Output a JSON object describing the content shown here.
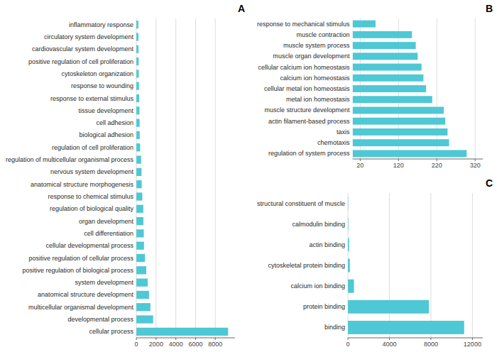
{
  "chart_data": [
    {
      "type": "bar",
      "title": "A",
      "orientation": "horizontal",
      "categories": [
        "inflammatory response",
        "circulatory system development",
        "cardiovascular system development",
        "positive regulation of cell proliferation",
        "cytoskeleton organization",
        "response to wounding",
        "response to external stimulus",
        "tissue development",
        "cell adhesion",
        "biological adhesion",
        "regulation of cell proliferation",
        "regulation of multicellular organismal process",
        "nervous system development",
        "anatomical structure morphogenesis",
        "response to chemical stimulus",
        "regulation of biological quality",
        "organ development",
        "cell differentiation",
        "cellular developmental process",
        "positive regulation of cellular process",
        "positive regulation of biological process",
        "system development",
        "anatomical structure development",
        "multicellular organismal development",
        "developmental process",
        "cellular process"
      ],
      "values": [
        200,
        210,
        215,
        230,
        240,
        260,
        280,
        310,
        330,
        340,
        380,
        480,
        520,
        540,
        600,
        700,
        710,
        750,
        770,
        870,
        1000,
        1150,
        1280,
        1420,
        1700,
        9300
      ],
      "color": "#4EC8D4",
      "xlim": [
        0,
        10000
      ],
      "xticks": [
        0,
        2000,
        4000,
        6000,
        8000
      ],
      "grid": true
    },
    {
      "type": "bar",
      "title": "B",
      "orientation": "horizontal",
      "categories": [
        "response to mechanical stimulus",
        "muscle contraction",
        "muscle system process",
        "muscle organ development",
        "cellular calcium ion homeostasis",
        "calcium ion homeostasis",
        "cellular metal ion homeostasis",
        "metal ion homeostasis",
        "muscle structure development",
        "actin filament-based process",
        "taxis",
        "chemotaxis",
        "regulation of system process"
      ],
      "values": [
        60,
        155,
        165,
        170,
        180,
        185,
        192,
        208,
        238,
        242,
        248,
        252,
        298
      ],
      "color": "#4EC8D4",
      "xlim": [
        0,
        340
      ],
      "xticks": [
        20,
        120,
        220,
        320
      ],
      "grid": true
    },
    {
      "type": "bar",
      "title": "C",
      "orientation": "horizontal",
      "categories": [
        "structural constituent of muscle",
        "calmodulin binding",
        "actin binding",
        "cytoskeletal protein binding",
        "calcium ion binding",
        "protein binding",
        "binding"
      ],
      "values": [
        25,
        35,
        110,
        180,
        580,
        7800,
        11200
      ],
      "color": "#4EC8D4",
      "xlim": [
        0,
        13000
      ],
      "xticks": [
        0,
        4000,
        8000,
        12000
      ],
      "grid": true
    }
  ]
}
